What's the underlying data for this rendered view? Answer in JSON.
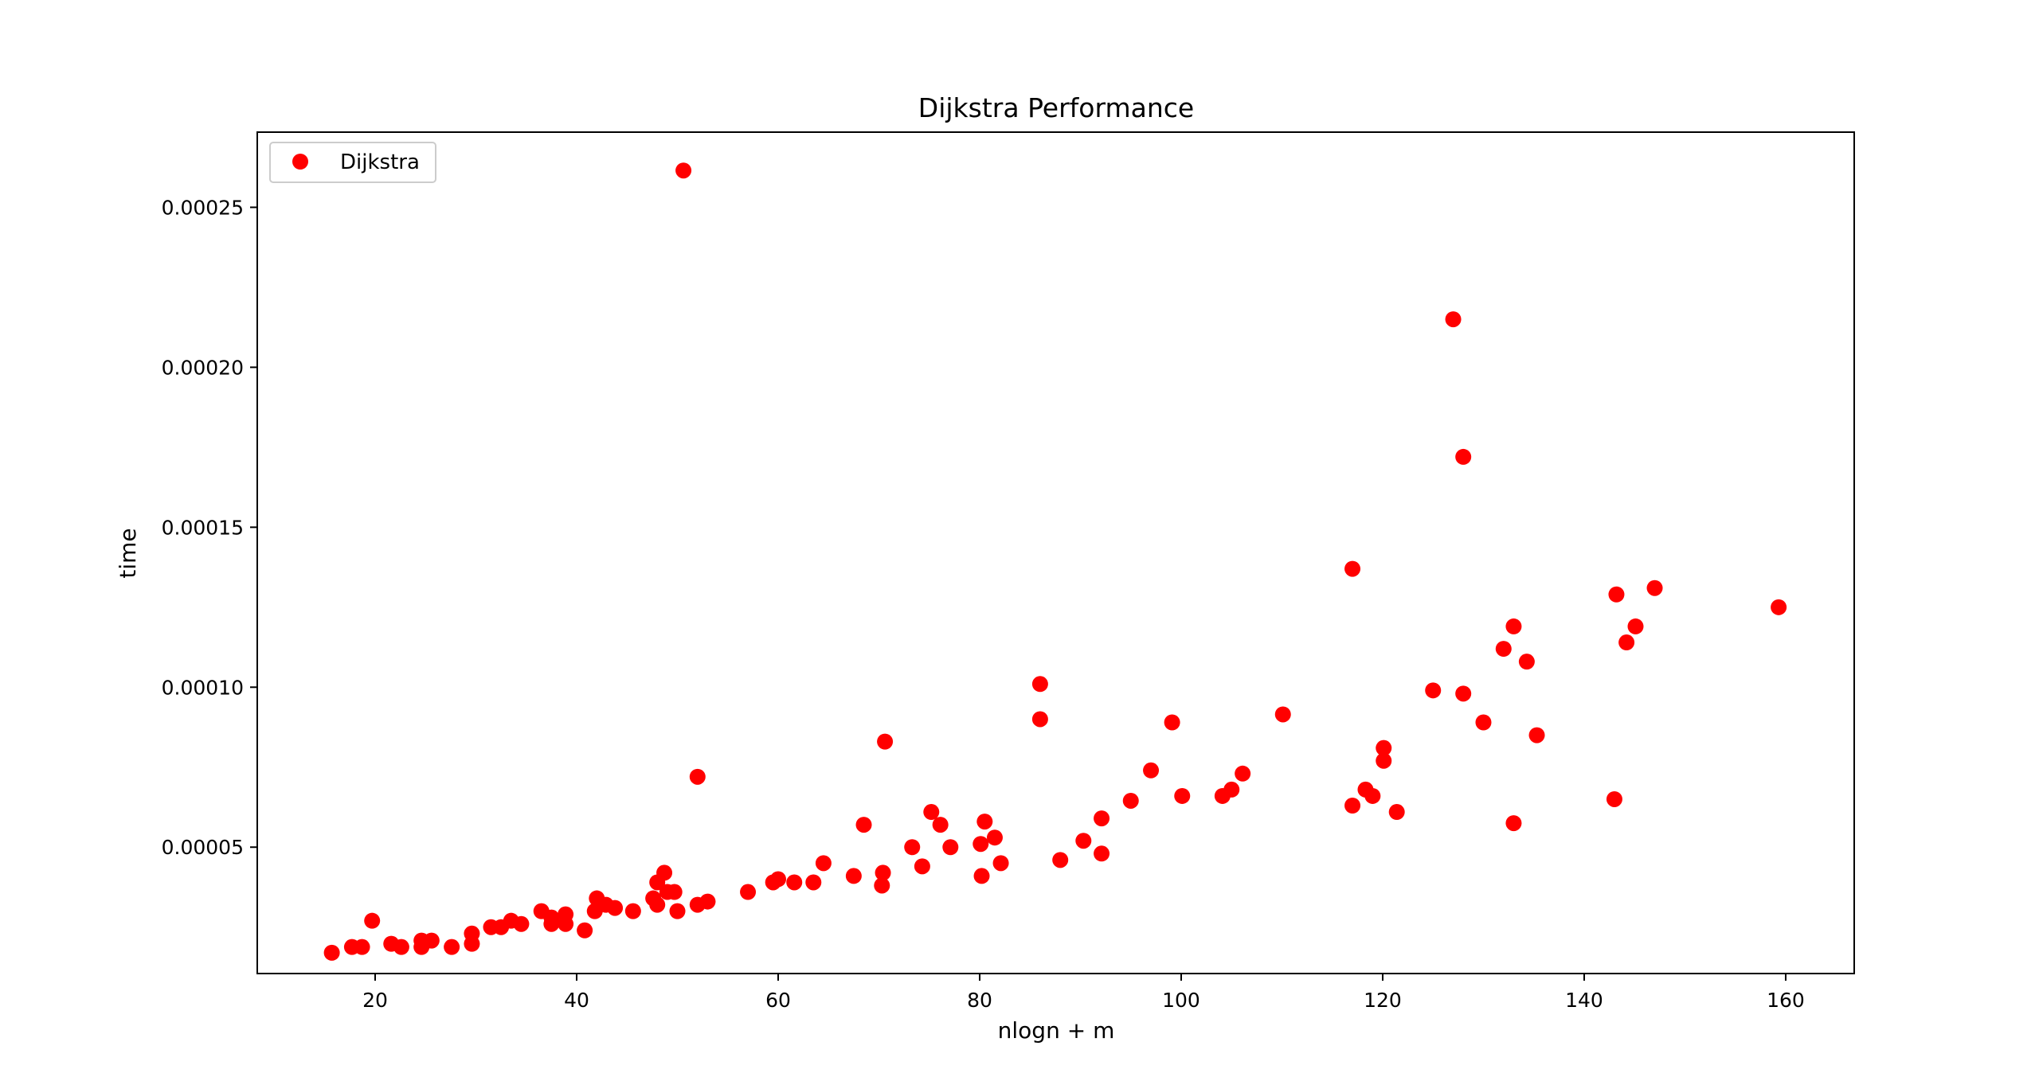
{
  "chart_data": {
    "type": "scatter",
    "title": "Dijkstra Performance",
    "xlabel": "nlogn + m",
    "ylabel": "time",
    "xlim": [
      8.3,
      166.8
    ],
    "ylim": [
      1.05e-05,
      0.0002735
    ],
    "grid": false,
    "legend_placement": "top-left",
    "xticks": [
      {
        "value": 20,
        "label": "20"
      },
      {
        "value": 40,
        "label": "40"
      },
      {
        "value": 60,
        "label": "60"
      },
      {
        "value": 80,
        "label": "80"
      },
      {
        "value": 100,
        "label": "100"
      },
      {
        "value": 120,
        "label": "120"
      },
      {
        "value": 140,
        "label": "140"
      },
      {
        "value": 160,
        "label": "160"
      }
    ],
    "yticks": [
      {
        "value": 5e-05,
        "label": "0.00005"
      },
      {
        "value": 0.0001,
        "label": "0.00010"
      },
      {
        "value": 0.00015,
        "label": "0.00015"
      },
      {
        "value": 0.0002,
        "label": "0.00020"
      },
      {
        "value": 0.00025,
        "label": "0.00025"
      }
    ],
    "series": [
      {
        "name": "Dijkstra",
        "color": "#ff0000",
        "marker": "circle",
        "points": [
          [
            15.7,
            1.7e-05
          ],
          [
            17.7,
            1.88e-05
          ],
          [
            18.7,
            1.88e-05
          ],
          [
            19.7,
            2.7e-05
          ],
          [
            21.6,
            1.98e-05
          ],
          [
            22.6,
            1.88e-05
          ],
          [
            24.6,
            2.08e-05
          ],
          [
            24.6,
            1.88e-05
          ],
          [
            25.6,
            2.08e-05
          ],
          [
            27.6,
            1.88e-05
          ],
          [
            29.6,
            2.3e-05
          ],
          [
            29.6,
            1.98e-05
          ],
          [
            31.5,
            2.5e-05
          ],
          [
            32.5,
            2.5e-05
          ],
          [
            33.5,
            2.7e-05
          ],
          [
            34.5,
            2.6e-05
          ],
          [
            36.5,
            3e-05
          ],
          [
            37.5,
            2.8e-05
          ],
          [
            37.5,
            2.6e-05
          ],
          [
            38.9,
            2.6e-05
          ],
          [
            38.9,
            2.9e-05
          ],
          [
            40.8,
            2.4e-05
          ],
          [
            41.8,
            3e-05
          ],
          [
            42.0,
            3.4e-05
          ],
          [
            42.9,
            3.2e-05
          ],
          [
            43.8,
            3.1e-05
          ],
          [
            45.6,
            3e-05
          ],
          [
            47.6,
            3.4e-05
          ],
          [
            48.0,
            3.9e-05
          ],
          [
            48.0,
            3.2e-05
          ],
          [
            48.7,
            4.2e-05
          ],
          [
            49.0,
            3.6e-05
          ],
          [
            49.7,
            3.6e-05
          ],
          [
            50.0,
            3e-05
          ],
          [
            50.6,
            0.0002615
          ],
          [
            52.0,
            3.2e-05
          ],
          [
            52.0,
            7.2e-05
          ],
          [
            53.0,
            3.3e-05
          ],
          [
            57.0,
            3.6e-05
          ],
          [
            59.5,
            3.9e-05
          ],
          [
            60.0,
            4e-05
          ],
          [
            61.6,
            3.9e-05
          ],
          [
            63.5,
            3.9e-05
          ],
          [
            64.5,
            4.5e-05
          ],
          [
            67.5,
            4.1e-05
          ],
          [
            68.5,
            5.7e-05
          ],
          [
            70.3,
            3.8e-05
          ],
          [
            70.4,
            4.2e-05
          ],
          [
            70.6,
            8.3e-05
          ],
          [
            73.3,
            5e-05
          ],
          [
            74.3,
            4.4e-05
          ],
          [
            75.2,
            6.1e-05
          ],
          [
            76.1,
            5.7e-05
          ],
          [
            77.1,
            5e-05
          ],
          [
            80.1,
            5.1e-05
          ],
          [
            80.2,
            4.1e-05
          ],
          [
            80.5,
            5.8e-05
          ],
          [
            81.5,
            5.3e-05
          ],
          [
            82.1,
            4.5e-05
          ],
          [
            86.0,
            0.000101
          ],
          [
            86.0,
            9e-05
          ],
          [
            88.0,
            4.6e-05
          ],
          [
            90.3,
            5.2e-05
          ],
          [
            92.1,
            5.9e-05
          ],
          [
            92.1,
            4.8e-05
          ],
          [
            95.0,
            6.45e-05
          ],
          [
            97.0,
            7.4e-05
          ],
          [
            99.1,
            8.9e-05
          ],
          [
            100.1,
            6.6e-05
          ],
          [
            104.1,
            6.6e-05
          ],
          [
            105.0,
            6.8e-05
          ],
          [
            106.1,
            7.3e-05
          ],
          [
            110.1,
            9.15e-05
          ],
          [
            117.0,
            0.000137
          ],
          [
            117.0,
            6.3e-05
          ],
          [
            118.3,
            6.8e-05
          ],
          [
            119.0,
            6.6e-05
          ],
          [
            120.1,
            8.1e-05
          ],
          [
            120.1,
            7.7e-05
          ],
          [
            121.4,
            6.1e-05
          ],
          [
            125.0,
            9.9e-05
          ],
          [
            127.0,
            0.000215
          ],
          [
            128.0,
            0.000172
          ],
          [
            128.0,
            9.8e-05
          ],
          [
            130.0,
            8.9e-05
          ],
          [
            132.0,
            0.000112
          ],
          [
            133.0,
            0.000119
          ],
          [
            133.0,
            5.75e-05
          ],
          [
            134.3,
            0.000108
          ],
          [
            135.3,
            8.5e-05
          ],
          [
            143.0,
            6.5e-05
          ],
          [
            143.2,
            0.000129
          ],
          [
            144.2,
            0.000114
          ],
          [
            145.1,
            0.000119
          ],
          [
            147.0,
            0.000131
          ],
          [
            159.3,
            0.000125
          ]
        ]
      }
    ]
  }
}
